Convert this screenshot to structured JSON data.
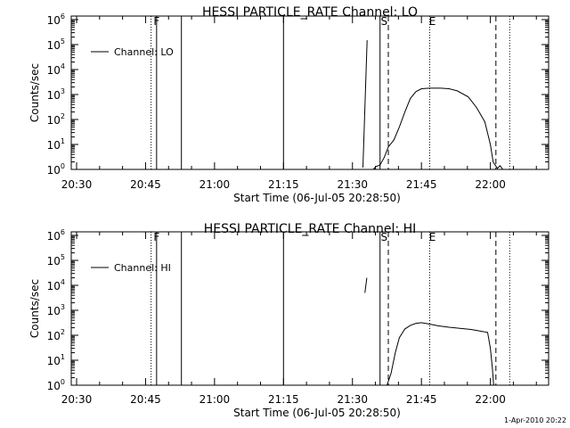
{
  "chart_data": [
    {
      "type": "line",
      "title": "HESSI PARTICLE_RATE Channel: LO",
      "xlabel": "Start Time (06-Jul-05 20:28:50)",
      "ylabel": "Counts/sec",
      "ylim": [
        1,
        1000000
      ],
      "y_log": true,
      "x_tick_labels": [
        "20:30",
        "20:45",
        "21:00",
        "21:15",
        "21:30",
        "21:45",
        "22:00"
      ],
      "y_tick_labels": [
        {
          "base": "10",
          "exp": "6"
        },
        {
          "base": "10",
          "exp": "5"
        },
        {
          "base": "10",
          "exp": "4"
        },
        {
          "base": "10",
          "exp": "3"
        },
        {
          "base": "10",
          "exp": "2"
        },
        {
          "base": "10",
          "exp": "1"
        },
        {
          "base": "10",
          "exp": "0"
        }
      ],
      "legend": {
        "label": "Channel: LO",
        "position": "top-left"
      },
      "markers_top": [
        "F",
        "S",
        "E"
      ],
      "vlines": [
        {
          "t": 20.77,
          "style": "dotted"
        },
        {
          "t": 20.79,
          "style": "solid"
        },
        {
          "t": 20.88,
          "style": "solid"
        },
        {
          "t": 21.25,
          "style": "solid"
        },
        {
          "t": 21.6,
          "style": "solid"
        },
        {
          "t": 21.63,
          "style": "dashed"
        },
        {
          "t": 21.78,
          "style": "dotted"
        },
        {
          "t": 22.02,
          "style": "dashed"
        },
        {
          "t": 22.07,
          "style": "dotted"
        }
      ],
      "series": [
        {
          "points": [
            [
              21.538,
              1.2
            ],
            [
              21.553,
              150000
            ]
          ]
        },
        {
          "points": [
            [
              21.575,
              1.0
            ],
            [
              21.585,
              1.3
            ],
            [
              21.6,
              1.5
            ],
            [
              21.615,
              3
            ],
            [
              21.63,
              8
            ],
            [
              21.65,
              15
            ],
            [
              21.67,
              50
            ],
            [
              21.69,
              200
            ],
            [
              21.71,
              700
            ],
            [
              21.73,
              1300
            ],
            [
              21.75,
              1700
            ],
            [
              21.78,
              1800
            ],
            [
              21.82,
              1800
            ],
            [
              21.85,
              1700
            ],
            [
              21.88,
              1400
            ],
            [
              21.92,
              800
            ],
            [
              21.95,
              300
            ],
            [
              21.98,
              80
            ],
            [
              22.0,
              10
            ],
            [
              22.01,
              2
            ],
            [
              22.025,
              1.1
            ],
            [
              22.035,
              1.4
            ],
            [
              22.045,
              1.0
            ]
          ]
        }
      ]
    },
    {
      "type": "line",
      "title": "HESSI PARTICLE_RATE Channel: HI",
      "xlabel": "Start Time (06-Jul-05 20:28:50)",
      "ylabel": "Counts/sec",
      "ylim": [
        1,
        1000000
      ],
      "y_log": true,
      "x_tick_labels": [
        "20:30",
        "20:45",
        "21:00",
        "21:15",
        "21:30",
        "21:45",
        "22:00"
      ],
      "y_tick_labels": [
        {
          "base": "10",
          "exp": "6"
        },
        {
          "base": "10",
          "exp": "5"
        },
        {
          "base": "10",
          "exp": "4"
        },
        {
          "base": "10",
          "exp": "3"
        },
        {
          "base": "10",
          "exp": "2"
        },
        {
          "base": "10",
          "exp": "1"
        },
        {
          "base": "10",
          "exp": "0"
        }
      ],
      "legend": {
        "label": "Channel: HI",
        "position": "top-left"
      },
      "markers_top": [
        "F",
        "S",
        "E"
      ],
      "vlines": [
        {
          "t": 20.77,
          "style": "dotted"
        },
        {
          "t": 20.79,
          "style": "solid"
        },
        {
          "t": 20.88,
          "style": "solid"
        },
        {
          "t": 21.25,
          "style": "solid"
        },
        {
          "t": 21.6,
          "style": "solid"
        },
        {
          "t": 21.63,
          "style": "dashed"
        },
        {
          "t": 21.78,
          "style": "dotted"
        },
        {
          "t": 22.02,
          "style": "dashed"
        },
        {
          "t": 22.07,
          "style": "dotted"
        }
      ],
      "series": [
        {
          "points": [
            [
              21.545,
              5000
            ],
            [
              21.552,
              20000
            ]
          ]
        },
        {
          "points": [
            [
              21.625,
              1.0
            ],
            [
              21.64,
              3
            ],
            [
              21.655,
              20
            ],
            [
              21.67,
              80
            ],
            [
              21.69,
              180
            ],
            [
              21.71,
              250
            ],
            [
              21.73,
              300
            ],
            [
              21.75,
              320
            ],
            [
              21.78,
              280
            ],
            [
              21.81,
              240
            ],
            [
              21.85,
              210
            ],
            [
              21.89,
              190
            ],
            [
              21.93,
              170
            ],
            [
              21.96,
              150
            ],
            [
              21.99,
              130
            ],
            [
              22.0,
              30
            ],
            [
              22.007,
              5
            ],
            [
              22.012,
              1.0
            ]
          ]
        }
      ]
    }
  ],
  "footer": {
    "timestamp": "1-Apr-2010 20:22"
  }
}
